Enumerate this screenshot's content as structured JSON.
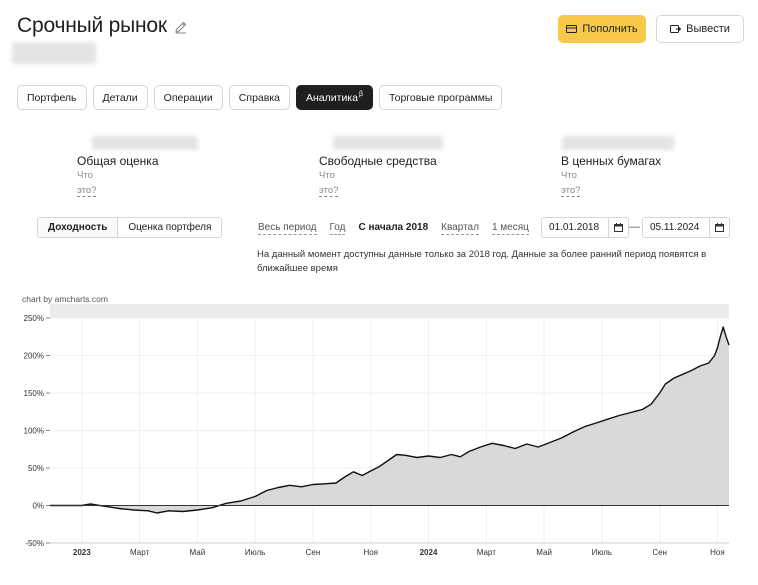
{
  "header": {
    "title": "Срочный рынок",
    "topup_label": "Пополнить",
    "withdraw_label": "Вывести"
  },
  "tabs": [
    {
      "label": "Портфель",
      "active": false
    },
    {
      "label": "Детали",
      "active": false
    },
    {
      "label": "Операции",
      "active": false
    },
    {
      "label": "Справка",
      "active": false
    },
    {
      "label": "Аналитика",
      "sup": "β",
      "active": true
    },
    {
      "label": "Торговые программы",
      "active": false
    }
  ],
  "stats": [
    {
      "label": "Общая оценка",
      "what_1": "Что",
      "what_2": "это?"
    },
    {
      "label": "Свободные средства",
      "what_1": "Что",
      "what_2": "это?"
    },
    {
      "label": "В ценных бумагах",
      "what_1": "Что",
      "what_2": "это?"
    }
  ],
  "view_switch": {
    "options": [
      "Доходность",
      "Оценка портфеля"
    ],
    "selected": "Доходность"
  },
  "periods": {
    "options": [
      "Весь период",
      "Год",
      "С начала 2018",
      "Квартал",
      "1 месяц"
    ],
    "selected": "С начала 2018"
  },
  "date_range": {
    "from": "01.01.2018",
    "separator": "—",
    "to": "05.11.2024"
  },
  "notice": "На данный момент доступны данные только за 2018 год. Данные за более ранний период появятся в ближайшее время",
  "chart_credit": "chart by amcharts.com",
  "colors": {
    "accent": "#f7c948",
    "dark": "#1f1f1f",
    "area": "#d9d9d9",
    "line": "#111111"
  },
  "chart_data": {
    "type": "area",
    "ylim": [
      -50,
      250
    ],
    "yticks": [
      "250%",
      "200%",
      "150%",
      "100%",
      "50%",
      "0%",
      "-50%"
    ],
    "ytick_values": [
      250,
      200,
      150,
      100,
      50,
      0,
      -50
    ],
    "xticks": [
      {
        "label": "2023",
        "t": 0,
        "bold": true
      },
      {
        "label": "Март",
        "t": 2
      },
      {
        "label": "Май",
        "t": 4
      },
      {
        "label": "Июль",
        "t": 6
      },
      {
        "label": "Сен",
        "t": 8
      },
      {
        "label": "Ноя",
        "t": 10
      },
      {
        "label": "2024",
        "t": 12,
        "bold": true
      },
      {
        "label": "Март",
        "t": 14
      },
      {
        "label": "Май",
        "t": 16
      },
      {
        "label": "Июль",
        "t": 18
      },
      {
        "label": "Сен",
        "t": 20
      },
      {
        "label": "Ноя",
        "t": 22
      }
    ],
    "x_unit": "months since Jan 2023",
    "series": [
      {
        "values": [
          [
            -1.1,
            0
          ],
          [
            0,
            0
          ],
          [
            0.3,
            2
          ],
          [
            0.8,
            -1
          ],
          [
            1.3,
            -4
          ],
          [
            1.8,
            -6
          ],
          [
            2.3,
            -7
          ],
          [
            2.6,
            -10
          ],
          [
            3.0,
            -7
          ],
          [
            3.5,
            -8
          ],
          [
            4.0,
            -6
          ],
          [
            4.5,
            -3
          ],
          [
            5.0,
            3
          ],
          [
            5.5,
            6
          ],
          [
            6.0,
            12
          ],
          [
            6.4,
            20
          ],
          [
            6.8,
            24
          ],
          [
            7.2,
            27
          ],
          [
            7.6,
            25
          ],
          [
            8.0,
            28
          ],
          [
            8.4,
            29
          ],
          [
            8.8,
            30
          ],
          [
            9.1,
            38
          ],
          [
            9.4,
            45
          ],
          [
            9.7,
            40
          ],
          [
            10.0,
            46
          ],
          [
            10.3,
            52
          ],
          [
            10.6,
            60
          ],
          [
            10.9,
            68
          ],
          [
            11.2,
            67
          ],
          [
            11.6,
            64
          ],
          [
            12.0,
            66
          ],
          [
            12.4,
            64
          ],
          [
            12.8,
            68
          ],
          [
            13.1,
            65
          ],
          [
            13.4,
            72
          ],
          [
            13.8,
            78
          ],
          [
            14.2,
            83
          ],
          [
            14.6,
            80
          ],
          [
            15.0,
            76
          ],
          [
            15.4,
            82
          ],
          [
            15.8,
            78
          ],
          [
            16.2,
            84
          ],
          [
            16.6,
            90
          ],
          [
            17.0,
            98
          ],
          [
            17.4,
            105
          ],
          [
            17.8,
            110
          ],
          [
            18.2,
            115
          ],
          [
            18.6,
            120
          ],
          [
            19.0,
            124
          ],
          [
            19.4,
            128
          ],
          [
            19.7,
            135
          ],
          [
            20.0,
            150
          ],
          [
            20.2,
            162
          ],
          [
            20.5,
            170
          ],
          [
            20.8,
            175
          ],
          [
            21.1,
            180
          ],
          [
            21.4,
            186
          ],
          [
            21.7,
            190
          ],
          [
            21.9,
            200
          ],
          [
            22.0,
            210
          ],
          [
            22.1,
            225
          ],
          [
            22.2,
            238
          ],
          [
            22.3,
            225
          ],
          [
            22.4,
            214
          ]
        ]
      }
    ]
  }
}
